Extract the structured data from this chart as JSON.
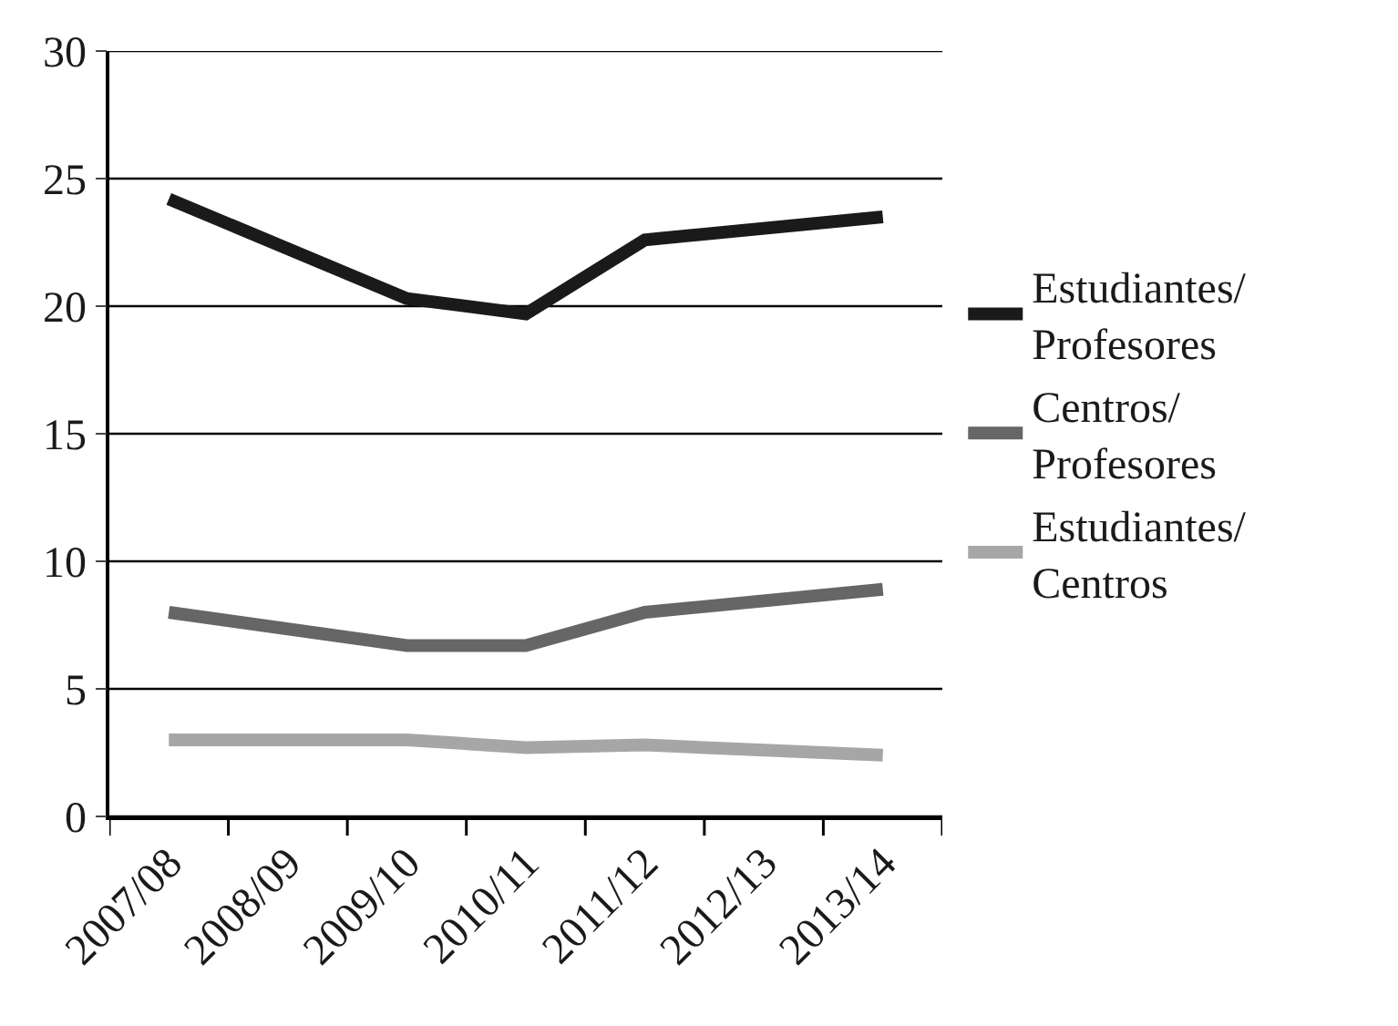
{
  "chart_data": {
    "type": "line",
    "categories": [
      "2007/08",
      "2008/09",
      "2009/10",
      "2010/11",
      "2011/12",
      "2012/13",
      "2013/14"
    ],
    "series": [
      {
        "name": "Estudiantes/ Profesores",
        "color": "#1a1a1a",
        "values": [
          24.2,
          null,
          20.3,
          19.7,
          22.6,
          null,
          23.5
        ]
      },
      {
        "name": "Centros/ Profesores",
        "color": "#666666",
        "values": [
          8.0,
          null,
          6.7,
          6.7,
          8.0,
          null,
          8.9
        ]
      },
      {
        "name": "Estudiantes/ Centros",
        "color": "#a6a6a6",
        "values": [
          3.0,
          null,
          3.0,
          2.7,
          2.8,
          null,
          2.4
        ]
      }
    ],
    "ylim": [
      0,
      30
    ],
    "yticks": [
      0,
      5,
      10,
      15,
      20,
      25,
      30
    ],
    "grid": "y",
    "legend": "right",
    "marker": "none",
    "line_style": "solid"
  }
}
